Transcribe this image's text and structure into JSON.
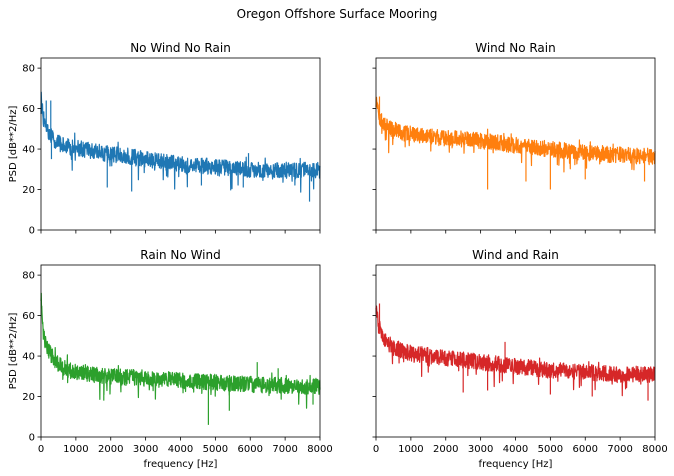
{
  "figure": {
    "suptitle": "Oregon Offshore Surface Mooring"
  },
  "chart_data": [
    {
      "type": "line",
      "title": "No Wind No Rain",
      "xlabel": "",
      "ylabel": "PSD [dB**2/Hz]",
      "xlim": [
        0,
        8000
      ],
      "ylim": [
        0,
        85
      ],
      "xticks": [
        0,
        1000,
        2000,
        3000,
        4000,
        5000,
        6000,
        7000,
        8000
      ],
      "yticks": [
        0,
        20,
        40,
        60,
        80
      ],
      "show_xticklabels": false,
      "show_yticklabels": true,
      "color": "#1f77b4",
      "series": [
        {
          "x": [
            0,
            60,
            150,
            300,
            500,
            800,
            1200,
            1600,
            2000,
            2500,
            3000,
            3500,
            4000,
            4500,
            5000,
            5500,
            6000,
            6500,
            7000,
            7500,
            8000
          ],
          "y": [
            66,
            56,
            50,
            46,
            43,
            41,
            40,
            38.5,
            37.5,
            36.5,
            35,
            33.5,
            32.5,
            32,
            31,
            30.5,
            30,
            30,
            29.5,
            29.5,
            29.5
          ],
          "noise_amplitude": 4,
          "dips": [
            [
              300,
              35
            ],
            [
              1900,
              21
            ],
            [
              2600,
              19
            ],
            [
              4600,
              22
            ],
            [
              5800,
              21
            ],
            [
              7700,
              14
            ]
          ],
          "spikes": [
            [
              150,
              64
            ],
            [
              280,
              64
            ],
            [
              5950,
              38
            ]
          ]
        }
      ]
    },
    {
      "type": "line",
      "title": "Wind No Rain",
      "xlabel": "",
      "ylabel": "",
      "xlim": [
        0,
        8000
      ],
      "ylim": [
        0,
        85
      ],
      "xticks": [
        0,
        1000,
        2000,
        3000,
        4000,
        5000,
        6000,
        7000,
        8000
      ],
      "yticks": [
        0,
        20,
        40,
        60,
        80
      ],
      "show_xticklabels": false,
      "show_yticklabels": false,
      "color": "#ff7f0e",
      "series": [
        {
          "x": [
            0,
            60,
            150,
            300,
            500,
            800,
            1200,
            1600,
            2000,
            2500,
            3000,
            3500,
            4000,
            4500,
            5000,
            5500,
            6000,
            6500,
            7000,
            7500,
            8000
          ],
          "y": [
            64,
            58,
            54,
            51,
            49,
            48,
            47,
            46,
            45.5,
            45,
            44,
            43,
            42,
            41,
            40,
            39,
            38,
            37.5,
            37,
            36.5,
            36.5
          ],
          "noise_amplitude": 4,
          "dips": [
            [
              3200,
              20
            ],
            [
              4300,
              24
            ],
            [
              5000,
              20
            ],
            [
              6000,
              25
            ],
            [
              7700,
              24
            ]
          ],
          "spikes": [
            [
              100,
              66
            ]
          ]
        }
      ]
    },
    {
      "type": "line",
      "title": "Rain No Wind",
      "xlabel": "frequency [Hz]",
      "ylabel": "PSD [dB**2/Hz]",
      "xlim": [
        0,
        8000
      ],
      "ylim": [
        0,
        85
      ],
      "xticks": [
        0,
        1000,
        2000,
        3000,
        4000,
        5000,
        6000,
        7000,
        8000
      ],
      "yticks": [
        0,
        20,
        40,
        60,
        80
      ],
      "show_xticklabels": true,
      "show_yticklabels": true,
      "color": "#2ca02c",
      "series": [
        {
          "x": [
            0,
            60,
            150,
            300,
            500,
            800,
            1200,
            1600,
            2000,
            2500,
            3000,
            3500,
            4000,
            4500,
            5000,
            5500,
            6000,
            6500,
            7000,
            7500,
            8000
          ],
          "y": [
            70,
            52,
            45,
            40,
            36,
            33,
            31.5,
            30.5,
            30,
            29.5,
            29,
            28.5,
            28,
            27.5,
            27,
            26.5,
            26,
            25.5,
            25.5,
            25,
            25
          ],
          "noise_amplitude": 4,
          "dips": [
            [
              1800,
              18
            ],
            [
              4800,
              6
            ],
            [
              5400,
              13
            ],
            [
              7800,
              16
            ]
          ],
          "spikes": [
            [
              6200,
              37
            ],
            [
              6800,
              34
            ]
          ]
        }
      ]
    },
    {
      "type": "line",
      "title": "Wind and Rain",
      "xlabel": "frequency [Hz]",
      "ylabel": "",
      "xlim": [
        0,
        8000
      ],
      "ylim": [
        0,
        85
      ],
      "xticks": [
        0,
        1000,
        2000,
        3000,
        4000,
        5000,
        6000,
        7000,
        8000
      ],
      "yticks": [
        0,
        20,
        40,
        60,
        80
      ],
      "show_xticklabels": true,
      "show_yticklabels": false,
      "color": "#d62728",
      "series": [
        {
          "x": [
            0,
            60,
            150,
            300,
            500,
            800,
            1200,
            1600,
            2000,
            2500,
            3000,
            3500,
            4000,
            4500,
            5000,
            5500,
            6000,
            6500,
            7000,
            7500,
            8000
          ],
          "y": [
            66,
            56,
            51,
            47,
            44,
            42,
            41,
            40,
            39,
            38,
            37,
            36,
            35,
            34,
            33,
            32.5,
            32,
            31.5,
            31,
            31,
            31
          ],
          "noise_amplitude": 4,
          "dips": [
            [
              2500,
              22
            ],
            [
              3200,
              23
            ],
            [
              5000,
              21
            ],
            [
              6200,
              20
            ],
            [
              7800,
              18
            ]
          ],
          "spikes": [
            [
              100,
              66
            ],
            [
              3700,
              47
            ]
          ]
        }
      ]
    }
  ]
}
